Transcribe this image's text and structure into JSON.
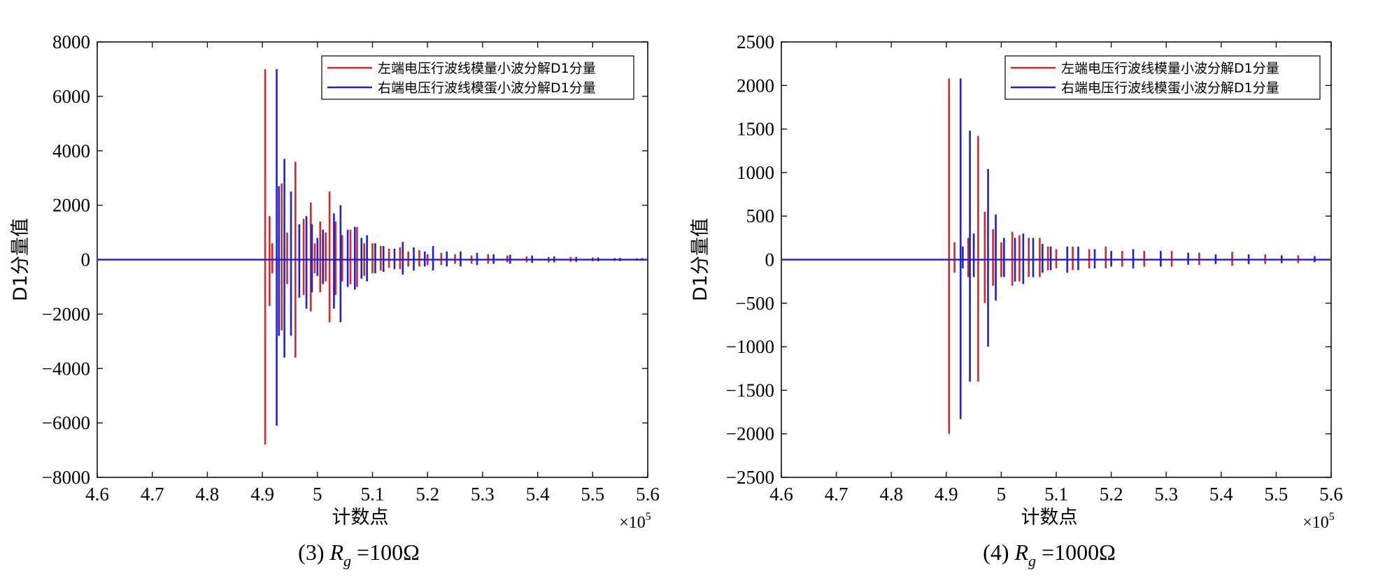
{
  "colors": {
    "red": "#d62728",
    "blue": "#1f1fd6",
    "axis": "#000000"
  },
  "chart_data": [
    {
      "type": "line",
      "caption": {
        "prefix": "(3) ",
        "var": "R",
        "sub": "g",
        "eq": " =",
        "value": "100Ω"
      },
      "xlabel": "计数点",
      "ylabel": "D1分量值",
      "xlim": [
        4.6,
        5.6
      ],
      "ylim": [
        -8000,
        8000
      ],
      "x_multiplier": {
        "base": "×10",
        "exp": "5"
      },
      "xticks": [
        4.6,
        4.7,
        4.8,
        4.9,
        5.0,
        5.1,
        5.2,
        5.3,
        5.4,
        5.5,
        5.6
      ],
      "xtick_labels": [
        "4.6",
        "4.7",
        "4.8",
        "4.9",
        "5",
        "5.1",
        "5.2",
        "5.3",
        "5.4",
        "5.5",
        "5.6"
      ],
      "yticks": [
        -8000,
        -6000,
        -4000,
        -2000,
        0,
        2000,
        4000,
        6000,
        8000
      ],
      "ytick_labels": [
        "−8000",
        "−6000",
        "−4000",
        "−2000",
        "0",
        "2000",
        "4000",
        "6000",
        "8000"
      ],
      "legend": {
        "position": "top-right"
      },
      "series": [
        {
          "name": "左端电压行波线模量小波分解D1分量",
          "color": "red",
          "spikes": [
            [
              4.905,
              7000,
              -6800
            ],
            [
              4.913,
              1600,
              -1700
            ],
            [
              4.918,
              600,
              -500
            ],
            [
              4.935,
              2800,
              -2600
            ],
            [
              4.945,
              1000,
              -900
            ],
            [
              4.96,
              3600,
              -3600
            ],
            [
              4.975,
              1500,
              -1300
            ],
            [
              4.988,
              2100,
              -1900
            ],
            [
              4.995,
              600,
              -500
            ],
            [
              5.005,
              1400,
              -1200
            ],
            [
              5.015,
              1000,
              -800
            ],
            [
              5.022,
              2500,
              -2300
            ],
            [
              5.033,
              1400,
              -1300
            ],
            [
              5.045,
              900,
              -800
            ],
            [
              5.06,
              1100,
              -900
            ],
            [
              5.072,
              1200,
              -1000
            ],
            [
              5.085,
              600,
              -600
            ],
            [
              5.1,
              600,
              -500
            ],
            [
              5.115,
              500,
              -400
            ],
            [
              5.13,
              400,
              -300
            ],
            [
              5.15,
              450,
              -350
            ],
            [
              5.165,
              300,
              -250
            ],
            [
              5.185,
              350,
              -250
            ],
            [
              5.2,
              200,
              -200
            ],
            [
              5.225,
              250,
              -200
            ],
            [
              5.25,
              200,
              -150
            ],
            [
              5.28,
              150,
              -150
            ],
            [
              5.31,
              200,
              -150
            ],
            [
              5.345,
              150,
              -100
            ],
            [
              5.38,
              120,
              -100
            ],
            [
              5.42,
              100,
              -100
            ],
            [
              5.46,
              100,
              -80
            ],
            [
              5.5,
              80,
              -60
            ],
            [
              5.54,
              60,
              -50
            ],
            [
              5.58,
              50,
              -40
            ]
          ]
        },
        {
          "name": "右端电压行波线模蛋小波分解D1分量",
          "color": "blue",
          "spikes": [
            [
              4.926,
              7000,
              -6100
            ],
            [
              4.93,
              2700,
              -2800
            ],
            [
              4.94,
              3700,
              -3600
            ],
            [
              4.952,
              2500,
              -2800
            ],
            [
              4.967,
              1300,
              -1400
            ],
            [
              4.98,
              1600,
              -1800
            ],
            [
              4.99,
              1300,
              -1200
            ],
            [
              5.0,
              800,
              -600
            ],
            [
              5.01,
              1100,
              -900
            ],
            [
              5.03,
              1700,
              -1800
            ],
            [
              5.042,
              2000,
              -2300
            ],
            [
              5.055,
              1100,
              -1000
            ],
            [
              5.068,
              1200,
              -1100
            ],
            [
              5.08,
              800,
              -700
            ],
            [
              5.09,
              900,
              -800
            ],
            [
              5.105,
              600,
              -500
            ],
            [
              5.12,
              500,
              -450
            ],
            [
              5.14,
              400,
              -350
            ],
            [
              5.155,
              650,
              -550
            ],
            [
              5.175,
              450,
              -400
            ],
            [
              5.195,
              300,
              -250
            ],
            [
              5.21,
              500,
              -400
            ],
            [
              5.235,
              300,
              -250
            ],
            [
              5.26,
              300,
              -250
            ],
            [
              5.29,
              250,
              -200
            ],
            [
              5.32,
              200,
              -150
            ],
            [
              5.35,
              180,
              -150
            ],
            [
              5.39,
              150,
              -120
            ],
            [
              5.43,
              120,
              -100
            ],
            [
              5.47,
              100,
              -80
            ],
            [
              5.51,
              80,
              -60
            ],
            [
              5.55,
              60,
              -50
            ],
            [
              5.59,
              50,
              -40
            ]
          ]
        }
      ]
    },
    {
      "type": "line",
      "caption": {
        "prefix": "(4) ",
        "var": "R",
        "sub": "g",
        "eq": " =",
        "value": "1000Ω"
      },
      "xlabel": "计数点",
      "ylabel": "D1分量值",
      "xlim": [
        4.6,
        5.6
      ],
      "ylim": [
        -2500,
        2500
      ],
      "x_multiplier": {
        "base": "×10",
        "exp": "5"
      },
      "xticks": [
        4.6,
        4.7,
        4.8,
        4.9,
        5.0,
        5.1,
        5.2,
        5.3,
        5.4,
        5.5,
        5.6
      ],
      "xtick_labels": [
        "4.6",
        "4.7",
        "4.8",
        "4.9",
        "5",
        "5.1",
        "5.2",
        "5.3",
        "5.4",
        "5.5",
        "5.6"
      ],
      "yticks": [
        -2500,
        -2000,
        -1500,
        -1000,
        -500,
        0,
        500,
        1000,
        1500,
        2000,
        2500
      ],
      "ytick_labels": [
        "−2500",
        "−2000",
        "−1500",
        "−1000",
        "−500",
        "0",
        "500",
        "1000",
        "1500",
        "2000",
        "2500"
      ],
      "legend": {
        "position": "top-right"
      },
      "series": [
        {
          "name": "左端电压行波线模量小波分解D1分量",
          "color": "red",
          "spikes": [
            [
              4.905,
              2080,
              -2000
            ],
            [
              4.915,
              200,
              -150
            ],
            [
              4.94,
              250,
              -200
            ],
            [
              4.958,
              1420,
              -1400
            ],
            [
              4.97,
              550,
              -500
            ],
            [
              4.985,
              350,
              -300
            ],
            [
              5.0,
              200,
              -200
            ],
            [
              5.02,
              320,
              -300
            ],
            [
              5.033,
              280,
              -250
            ],
            [
              5.05,
              250,
              -200
            ],
            [
              5.07,
              250,
              -200
            ],
            [
              5.085,
              150,
              -120
            ],
            [
              5.1,
              120,
              -100
            ],
            [
              5.13,
              150,
              -120
            ],
            [
              5.16,
              120,
              -100
            ],
            [
              5.19,
              150,
              -100
            ],
            [
              5.22,
              100,
              -80
            ],
            [
              5.26,
              100,
              -80
            ],
            [
              5.31,
              100,
              -80
            ],
            [
              5.36,
              80,
              -60
            ],
            [
              5.42,
              90,
              -70
            ],
            [
              5.48,
              60,
              -50
            ],
            [
              5.54,
              50,
              -40
            ]
          ]
        },
        {
          "name": "右端电压行波线模蛋小波分解D1分量",
          "color": "blue",
          "spikes": [
            [
              4.926,
              2080,
              -1830
            ],
            [
              4.93,
              150,
              -100
            ],
            [
              4.943,
              1480,
              -1400
            ],
            [
              4.95,
              300,
              -200
            ],
            [
              4.976,
              1040,
              -1000
            ],
            [
              4.99,
              520,
              -470
            ],
            [
              5.005,
              250,
              -200
            ],
            [
              5.025,
              250,
              -250
            ],
            [
              5.04,
              300,
              -280
            ],
            [
              5.058,
              250,
              -200
            ],
            [
              5.075,
              180,
              -150
            ],
            [
              5.09,
              150,
              -120
            ],
            [
              5.12,
              150,
              -150
            ],
            [
              5.14,
              150,
              -120
            ],
            [
              5.17,
              120,
              -100
            ],
            [
              5.2,
              100,
              -80
            ],
            [
              5.24,
              120,
              -100
            ],
            [
              5.29,
              100,
              -80
            ],
            [
              5.34,
              80,
              -60
            ],
            [
              5.39,
              60,
              -50
            ],
            [
              5.45,
              60,
              -50
            ],
            [
              5.51,
              50,
              -40
            ],
            [
              5.57,
              40,
              -30
            ]
          ]
        }
      ]
    }
  ]
}
